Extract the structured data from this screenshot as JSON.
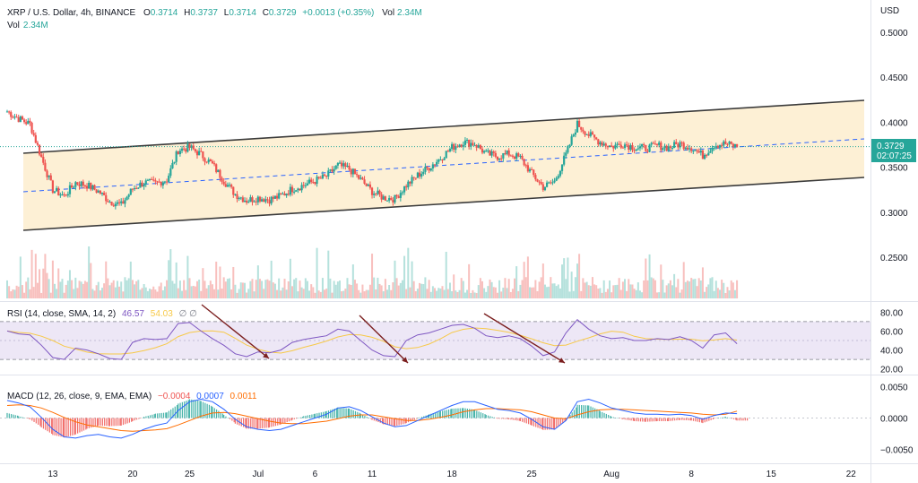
{
  "header": {
    "symbol": "XRP / U.S. Dollar, 4h, BINANCE",
    "o_label": "O",
    "o": "0.3714",
    "h_label": "H",
    "h": "0.3737",
    "l_label": "L",
    "l": "0.3714",
    "c_label": "C",
    "c": "0.3729",
    "change": "+0.0013 (+0.35%)",
    "vol_label": "Vol",
    "vol": "2.34M",
    "vol2_label": "Vol",
    "vol2": "2.34M"
  },
  "currency": "USD",
  "last_price": "0.3729",
  "countdown": "02:07:25",
  "colors": {
    "up": "#26a69a",
    "down": "#ef5350",
    "channel_fill": "#fdf0d5",
    "channel_line": "#3b3b3b",
    "mid_line": "#2962ff",
    "rsi": "#7e57c2",
    "rsi_sma": "#f7c948",
    "rsi_band": "#ede7f6",
    "macd": "#2962ff",
    "signal": "#ff6d00",
    "arrow": "#7b1f1f",
    "price_label": "#26a69a"
  },
  "rsi_panel": {
    "title": "RSI (14, close, SMA, 14, 2)",
    "rsi_value": "46.57",
    "sma_value": "54.03",
    "extra": "∅ ∅",
    "ticks": [
      "80.00",
      "60.00",
      "40.00",
      "20.00"
    ]
  },
  "macd_panel": {
    "title": "MACD (12, 26, close, 9, EMA, EMA)",
    "hist_value": "−0.0004",
    "macd_value": "0.0007",
    "signal_value": "0.0011",
    "ticks": [
      "0.0050",
      "0.0000",
      "−0.0050"
    ]
  },
  "date_labels": [
    "13",
    "20",
    "25",
    "Jul",
    "6",
    "11",
    "18",
    "25",
    "Aug",
    "8",
    "15",
    "22"
  ],
  "chart_data": {
    "type": "candlestick",
    "symbol": "XRP / U.S. Dollar",
    "interval": "4h",
    "y_ticks": [
      "0.5000",
      "0.4500",
      "0.4000",
      "0.3500",
      "0.3000",
      "0.2500"
    ],
    "ylim": [
      0.2,
      0.52
    ],
    "price_path": [
      {
        "date": "Jun 9",
        "close": 0.412
      },
      {
        "date": "Jun 10",
        "close": 0.404
      },
      {
        "date": "Jun 11",
        "close": 0.398
      },
      {
        "date": "Jun 12",
        "close": 0.361
      },
      {
        "date": "Jun 13",
        "close": 0.325
      },
      {
        "date": "Jun 14",
        "close": 0.318
      },
      {
        "date": "Jun 15",
        "close": 0.333
      },
      {
        "date": "Jun 16",
        "close": 0.33
      },
      {
        "date": "Jun 17",
        "close": 0.323
      },
      {
        "date": "Jun 18",
        "close": 0.312
      },
      {
        "date": "Jun 19",
        "close": 0.308
      },
      {
        "date": "Jun 20",
        "close": 0.326
      },
      {
        "date": "Jun 21",
        "close": 0.333
      },
      {
        "date": "Jun 22",
        "close": 0.332
      },
      {
        "date": "Jun 23",
        "close": 0.336
      },
      {
        "date": "Jun 24",
        "close": 0.369
      },
      {
        "date": "Jun 25",
        "close": 0.372
      },
      {
        "date": "Jun 26",
        "close": 0.364
      },
      {
        "date": "Jun 27",
        "close": 0.353
      },
      {
        "date": "Jun 28",
        "close": 0.335
      },
      {
        "date": "Jun 29",
        "close": 0.32
      },
      {
        "date": "Jun 30",
        "close": 0.313
      },
      {
        "date": "Jul 1",
        "close": 0.316
      },
      {
        "date": "Jul 2",
        "close": 0.314
      },
      {
        "date": "Jul 3",
        "close": 0.318
      },
      {
        "date": "Jul 4",
        "close": 0.326
      },
      {
        "date": "Jul 5",
        "close": 0.33
      },
      {
        "date": "Jul 6",
        "close": 0.335
      },
      {
        "date": "Jul 7",
        "close": 0.34
      },
      {
        "date": "Jul 8",
        "close": 0.352
      },
      {
        "date": "Jul 9",
        "close": 0.348
      },
      {
        "date": "Jul 10",
        "close": 0.336
      },
      {
        "date": "Jul 11",
        "close": 0.323
      },
      {
        "date": "Jul 12",
        "close": 0.316
      },
      {
        "date": "Jul 13",
        "close": 0.315
      },
      {
        "date": "Jul 14",
        "close": 0.33
      },
      {
        "date": "Jul 15",
        "close": 0.341
      },
      {
        "date": "Jul 16",
        "close": 0.35
      },
      {
        "date": "Jul 17",
        "close": 0.36
      },
      {
        "date": "Jul 18",
        "close": 0.372
      },
      {
        "date": "Jul 19",
        "close": 0.378
      },
      {
        "date": "Jul 20",
        "close": 0.376
      },
      {
        "date": "Jul 21",
        "close": 0.365
      },
      {
        "date": "Jul 22",
        "close": 0.362
      },
      {
        "date": "Jul 23",
        "close": 0.365
      },
      {
        "date": "Jul 24",
        "close": 0.36
      },
      {
        "date": "Jul 25",
        "close": 0.343
      },
      {
        "date": "Jul 26",
        "close": 0.328
      },
      {
        "date": "Jul 27",
        "close": 0.334
      },
      {
        "date": "Jul 28",
        "close": 0.364
      },
      {
        "date": "Jul 29",
        "close": 0.398
      },
      {
        "date": "Jul 30",
        "close": 0.386
      },
      {
        "date": "Jul 31",
        "close": 0.378
      },
      {
        "date": "Aug 1",
        "close": 0.373
      },
      {
        "date": "Aug 2",
        "close": 0.376
      },
      {
        "date": "Aug 3",
        "close": 0.372
      },
      {
        "date": "Aug 4",
        "close": 0.371
      },
      {
        "date": "Aug 5",
        "close": 0.374
      },
      {
        "date": "Aug 6",
        "close": 0.372
      },
      {
        "date": "Aug 7",
        "close": 0.376
      },
      {
        "date": "Aug 8",
        "close": 0.372
      },
      {
        "date": "Aug 9",
        "close": 0.363
      },
      {
        "date": "Aug 10",
        "close": 0.375
      },
      {
        "date": "Aug 11",
        "close": 0.376
      },
      {
        "date": "Aug 12",
        "close": 0.3729
      }
    ],
    "channel": {
      "upper": [
        {
          "date": "Jun 12",
          "price": 0.366
        },
        {
          "date": "Aug 19",
          "price": 0.424
        }
      ],
      "mid": [
        {
          "date": "Jun 12",
          "price": 0.323
        },
        {
          "date": "Aug 19",
          "price": 0.38
        }
      ],
      "lower": [
        {
          "date": "Jun 12",
          "price": 0.28
        },
        {
          "date": "Aug 19",
          "price": 0.338
        }
      ]
    },
    "rsi_ylim": [
      10,
      85
    ],
    "rsi": [
      60,
      57,
      56,
      45,
      32,
      30,
      42,
      40,
      36,
      31,
      30,
      48,
      52,
      51,
      52,
      68,
      69,
      60,
      52,
      45,
      36,
      33,
      38,
      37,
      40,
      48,
      51,
      53,
      55,
      62,
      60,
      50,
      40,
      34,
      33,
      50,
      56,
      58,
      62,
      66,
      67,
      63,
      55,
      53,
      55,
      52,
      44,
      34,
      38,
      58,
      72,
      62,
      55,
      52,
      53,
      50,
      50,
      52,
      51,
      54,
      50,
      42,
      56,
      58,
      46.57
    ],
    "macd_ylim": [
      -0.0065,
      0.0055
    ],
    "macd": [
      0.0028,
      0.0024,
      0.0018,
      0.0001,
      -0.0018,
      -0.003,
      -0.0032,
      -0.0028,
      -0.0026,
      -0.003,
      -0.0032,
      -0.0026,
      -0.0018,
      -0.0012,
      -0.0008,
      0.0012,
      0.0026,
      0.003,
      0.0026,
      0.0014,
      -0.0002,
      -0.0014,
      -0.0018,
      -0.002,
      -0.0018,
      -0.0012,
      -0.0006,
      0.0,
      0.0006,
      0.0016,
      0.0018,
      0.0012,
      0.0002,
      -0.0008,
      -0.0014,
      -0.0012,
      -0.0004,
      0.0004,
      0.0012,
      0.002,
      0.0026,
      0.0026,
      0.002,
      0.0014,
      0.0012,
      0.0008,
      -0.0002,
      -0.0014,
      -0.0018,
      -0.0004,
      0.0026,
      0.003,
      0.0024,
      0.0016,
      0.0012,
      0.0008,
      0.0006,
      0.0006,
      0.0005,
      0.0006,
      0.0004,
      -0.0002,
      0.0004,
      0.0008,
      0.0007
    ],
    "signal": [
      0.002,
      0.0021,
      0.002,
      0.0016,
      0.0009,
      0.0001,
      -0.0006,
      -0.0011,
      -0.0014,
      -0.0017,
      -0.002,
      -0.0021,
      -0.002,
      -0.0019,
      -0.0017,
      -0.0011,
      -0.0004,
      0.0003,
      0.0008,
      0.0009,
      0.0007,
      0.0003,
      -0.0001,
      -0.0005,
      -0.0008,
      -0.0009,
      -0.0009,
      -0.0007,
      -0.0005,
      -0.0001,
      0.0003,
      0.0005,
      0.0005,
      0.0002,
      -0.0001,
      -0.0004,
      -0.0004,
      -0.0002,
      0.0001,
      0.0005,
      0.001,
      0.0013,
      0.0015,
      0.0015,
      0.0014,
      0.0013,
      0.001,
      0.0005,
      0.0,
      -0.0001,
      0.0005,
      0.001,
      0.0013,
      0.0014,
      0.0014,
      0.0013,
      0.0012,
      0.0011,
      0.001,
      0.0009,
      0.0008,
      0.0006,
      0.0005,
      0.0006,
      0.0011
    ]
  }
}
